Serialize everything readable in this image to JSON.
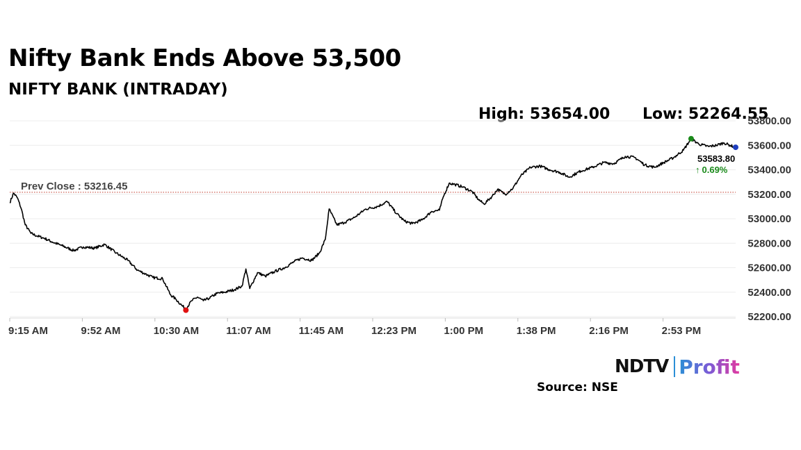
{
  "header": {
    "title": "Nifty Bank Ends Above 53,500",
    "subtitle": "NIFTY BANK (INTRADAY)",
    "high_text": "High: 53654.00",
    "low_text": "Low: 52264.55"
  },
  "footer": {
    "source": "Source: NSE",
    "logo_ndtv": "NDTV",
    "logo_profit": "Profit"
  },
  "colors": {
    "line": "#000000",
    "prev_close_line": "#c0392b",
    "high_marker": "#1a8a1a",
    "low_marker": "#e01010",
    "close_marker": "#1f3fbf",
    "change_up": "#1a8a1a"
  },
  "chart_data": {
    "type": "line",
    "title": "NIFTY BANK (INTRADAY)",
    "xlabel": "",
    "ylabel": "",
    "x_ticks": [
      "9:15 AM",
      "9:52 AM",
      "10:30 AM",
      "11:07 AM",
      "11:45 AM",
      "12:23 PM",
      "1:00 PM",
      "1:38 PM",
      "2:16 PM",
      "2:53 PM"
    ],
    "x_range_minutes": [
      0,
      375
    ],
    "ylim": [
      52200,
      53800
    ],
    "y_ticks": [
      52200,
      52400,
      52600,
      52800,
      53000,
      53200,
      53400,
      53600,
      53800
    ],
    "y_tick_labels": [
      "52200.00",
      "52400.00",
      "52600.00",
      "52800.00",
      "53000.00",
      "53200.00",
      "53400.00",
      "53600.00",
      "53800.00"
    ],
    "prev_close": 53216.45,
    "prev_close_label": "Prev Close : 53216.45",
    "high": 53654.0,
    "high_minute": 352,
    "low": 52264.55,
    "low_minute": 91,
    "close": 53583.8,
    "close_label": "53583.80",
    "change_label": "0.69%",
    "change_arrow": "↑",
    "series": [
      {
        "name": "NIFTY BANK",
        "x": [
          0,
          2,
          4,
          6,
          8,
          11,
          14,
          18,
          22,
          27,
          33,
          38,
          44,
          49,
          55,
          61,
          66,
          70,
          74,
          79,
          83,
          86,
          89,
          91,
          94,
          97,
          100,
          103,
          107,
          111,
          116,
          120,
          122,
          124,
          128,
          132,
          137,
          142,
          147,
          151,
          156,
          160,
          163,
          165,
          169,
          173,
          178,
          184,
          190,
          195,
          200,
          204,
          208,
          213,
          218,
          222,
          224,
          227,
          230,
          234,
          239,
          242,
          245,
          249,
          252,
          256,
          260,
          264,
          269,
          274,
          279,
          284,
          289,
          295,
          301,
          307,
          312,
          318,
          323,
          328,
          333,
          338,
          343,
          348,
          352,
          356,
          361,
          365,
          369,
          372,
          375
        ],
        "values": [
          53130,
          53210,
          53170,
          53080,
          52950,
          52880,
          52860,
          52840,
          52810,
          52780,
          52740,
          52770,
          52760,
          52790,
          52720,
          52660,
          52580,
          52550,
          52520,
          52510,
          52380,
          52340,
          52290,
          52264.55,
          52330,
          52360,
          52330,
          52350,
          52390,
          52400,
          52420,
          52450,
          52590,
          52430,
          52560,
          52530,
          52570,
          52600,
          52650,
          52680,
          52660,
          52720,
          52830,
          53080,
          52950,
          52970,
          53010,
          53080,
          53100,
          53140,
          53040,
          52980,
          52960,
          52990,
          53060,
          53070,
          53180,
          53290,
          53280,
          53260,
          53220,
          53160,
          53120,
          53180,
          53240,
          53200,
          53250,
          53350,
          53420,
          53430,
          53400,
          53380,
          53340,
          53390,
          53420,
          53460,
          53450,
          53510,
          53500,
          53440,
          53420,
          53460,
          53500,
          53560,
          53654,
          53610,
          53590,
          53600,
          53620,
          53600,
          53583.8
        ]
      }
    ]
  }
}
